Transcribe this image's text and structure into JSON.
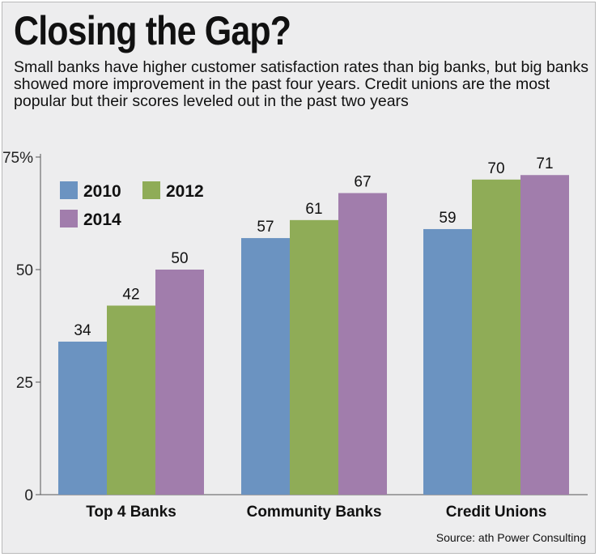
{
  "header": {
    "title": "Closing the Gap?",
    "subtitle": "Small banks have higher customer satisfaction rates than big banks, but big banks showed more improvement in the past four years. Credit unions are the most popular but their scores leveled out in the past two years"
  },
  "footer": {
    "source": "Source: ath Power Consulting"
  },
  "chart_data": {
    "type": "bar",
    "title": "Closing the Gap?",
    "subtitle": "Small banks have higher customer satisfaction rates than big banks, but big banks showed more improvement in the past four years. Credit unions are the most popular but their scores leveled out in the past two years",
    "xlabel": "",
    "ylabel": "",
    "categories": [
      "Top 4 Banks",
      "Community Banks",
      "Credit Unions"
    ],
    "series": [
      {
        "name": "2010",
        "color": "#6b93c1",
        "values": [
          34,
          57,
          59
        ]
      },
      {
        "name": "2012",
        "color": "#8fac57",
        "values": [
          42,
          61,
          70
        ]
      },
      {
        "name": "2014",
        "color": "#a17dac",
        "values": [
          50,
          67,
          71
        ]
      }
    ],
    "ylim": [
      0,
      75
    ],
    "yticks": [
      0,
      25,
      50,
      75
    ],
    "ytick_labels": [
      "0",
      "25",
      "50",
      "75%"
    ],
    "grid": false,
    "legend_position": "top-left",
    "source": "Source: ath Power Consulting"
  }
}
